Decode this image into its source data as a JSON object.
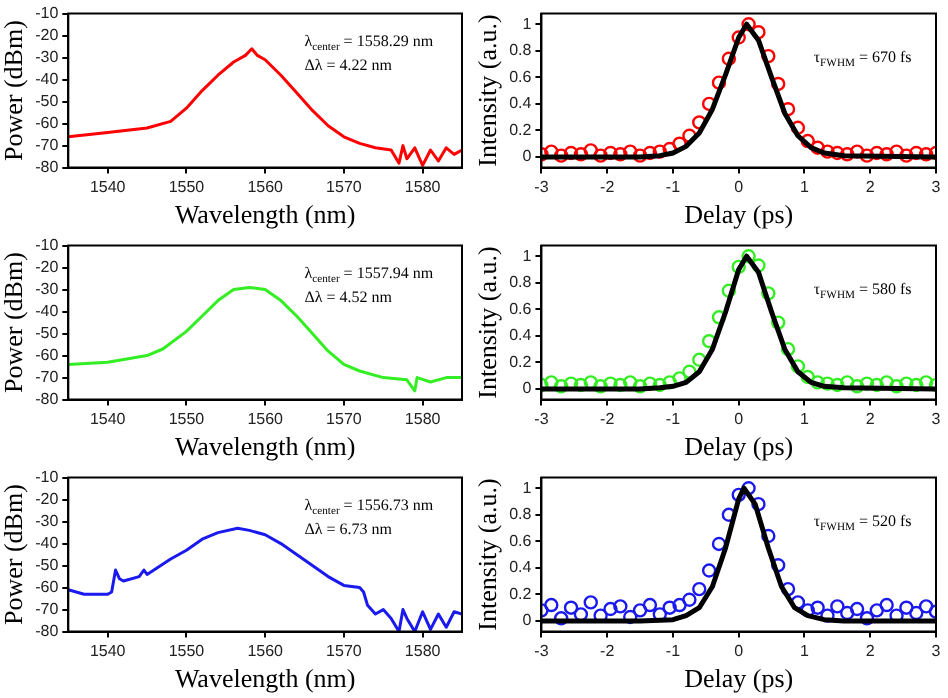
{
  "chart_data": [
    {
      "type": "line",
      "xlabel": "Wavelength (nm)",
      "ylabel": "Power (dBm)",
      "xlim": [
        1535,
        1585
      ],
      "xticks": [
        1540,
        1550,
        1560,
        1570,
        1580
      ],
      "ylim": [
        -80,
        -10
      ],
      "yticks": [
        -80,
        -70,
        -60,
        -50,
        -40,
        -30,
        -20,
        -10
      ],
      "annotations": [
        "λ$_{center}$ = 1558.29 nm",
        "Δλ = 4.22 nm"
      ],
      "marker": "none",
      "series": [
        {
          "color": "#ff0000",
          "x": [
            1535,
            1540,
            1545,
            1548,
            1550,
            1552,
            1554,
            1556,
            1557.5,
            1558.3,
            1559,
            1560,
            1562,
            1564,
            1566,
            1568,
            1570,
            1572,
            1574,
            1576,
            1577,
            1577.5,
            1578,
            1579,
            1580,
            1581,
            1582,
            1583,
            1584,
            1585
          ],
          "values": [
            -66,
            -64,
            -62,
            -59,
            -53,
            -45,
            -38,
            -32,
            -29,
            -26,
            -29,
            -31,
            -38,
            -46,
            -54,
            -61,
            -66,
            -69,
            -71,
            -72,
            -78,
            -70,
            -76,
            -71,
            -79,
            -72,
            -77,
            -71,
            -74,
            -72
          ]
        }
      ]
    },
    {
      "type": "scatter",
      "xlabel": "Delay (ps)",
      "ylabel": "Intensity (a.u.)",
      "xlim": [
        -3,
        3
      ],
      "xticks": [
        -3,
        -2,
        -1,
        0,
        1,
        2,
        3
      ],
      "ylim": [
        -0.08,
        1.08
      ],
      "yticks": [
        0,
        0.2,
        0.4,
        0.6,
        0.8,
        1
      ],
      "annotations": [
        "τ$_{FWHM}$ = 670 fs"
      ],
      "marker": "circle",
      "series": [
        {
          "type": "scatter",
          "color": "#ff0000",
          "x": [
            -3,
            -2.85,
            -2.7,
            -2.55,
            -2.4,
            -2.25,
            -2.1,
            -1.95,
            -1.8,
            -1.65,
            -1.5,
            -1.35,
            -1.2,
            -1.05,
            -0.9,
            -0.75,
            -0.6,
            -0.45,
            -0.3,
            -0.15,
            0,
            0.15,
            0.3,
            0.45,
            0.6,
            0.75,
            0.9,
            1.05,
            1.2,
            1.35,
            1.5,
            1.65,
            1.8,
            1.95,
            2.1,
            2.25,
            2.4,
            2.55,
            2.7,
            2.85,
            3
          ],
          "values": [
            0.02,
            0.04,
            0.01,
            0.03,
            0.02,
            0.05,
            0.01,
            0.03,
            0.02,
            0.04,
            0.01,
            0.03,
            0.04,
            0.06,
            0.1,
            0.16,
            0.26,
            0.4,
            0.56,
            0.74,
            0.9,
            1.0,
            0.94,
            0.76,
            0.55,
            0.36,
            0.22,
            0.12,
            0.07,
            0.04,
            0.03,
            0.02,
            0.04,
            0.01,
            0.03,
            0.02,
            0.04,
            0.01,
            0.03,
            0.02,
            0.03
          ]
        },
        {
          "type": "line",
          "marker": "none",
          "color": "#000000",
          "x": [
            -3,
            -1.5,
            -1.2,
            -1,
            -0.8,
            -0.6,
            -0.4,
            -0.2,
            0,
            0.12,
            0.3,
            0.5,
            0.7,
            0.9,
            1.1,
            1.3,
            1.6,
            3
          ],
          "values": [
            0,
            0,
            0.01,
            0.03,
            0.08,
            0.18,
            0.36,
            0.62,
            0.9,
            1,
            0.88,
            0.6,
            0.33,
            0.16,
            0.07,
            0.03,
            0.01,
            0
          ]
        }
      ]
    },
    {
      "type": "line",
      "xlabel": "Wavelength (nm)",
      "ylabel": "Power (dBm)",
      "xlim": [
        1535,
        1585
      ],
      "xticks": [
        1540,
        1550,
        1560,
        1570,
        1580
      ],
      "ylim": [
        -80,
        -10
      ],
      "yticks": [
        -80,
        -70,
        -60,
        -50,
        -40,
        -30,
        -20,
        -10
      ],
      "annotations": [
        "λ$_{center}$ = 1557.94 nm",
        "Δλ = 4.52 nm"
      ],
      "marker": "none",
      "series": [
        {
          "color": "#33ee22",
          "x": [
            1535,
            1540,
            1545,
            1547,
            1550,
            1552,
            1554,
            1556,
            1558,
            1560,
            1562,
            1564,
            1566,
            1568,
            1570,
            1572,
            1575,
            1578,
            1579,
            1579.3,
            1581,
            1583,
            1585
          ],
          "values": [
            -64,
            -63,
            -60,
            -57,
            -49,
            -42,
            -35,
            -30,
            -29,
            -30,
            -35,
            -42,
            -50,
            -58,
            -64,
            -67,
            -70,
            -71,
            -76,
            -70,
            -72,
            -70,
            -70
          ]
        }
      ]
    },
    {
      "type": "scatter",
      "xlabel": "Delay (ps)",
      "ylabel": "Intensity (a.u.)",
      "xlim": [
        -3,
        3
      ],
      "xticks": [
        -3,
        -2,
        -1,
        0,
        1,
        2,
        3
      ],
      "ylim": [
        -0.08,
        1.08
      ],
      "yticks": [
        0,
        0.2,
        0.4,
        0.6,
        0.8,
        1
      ],
      "annotations": [
        "τ$_{FWHM}$ = 580 fs"
      ],
      "marker": "circle",
      "series": [
        {
          "type": "scatter",
          "color": "#33ee22",
          "x": [
            -3,
            -2.85,
            -2.7,
            -2.55,
            -2.4,
            -2.25,
            -2.1,
            -1.95,
            -1.8,
            -1.65,
            -1.5,
            -1.35,
            -1.2,
            -1.05,
            -0.9,
            -0.75,
            -0.6,
            -0.45,
            -0.3,
            -0.15,
            0,
            0.15,
            0.3,
            0.45,
            0.6,
            0.75,
            0.9,
            1.05,
            1.2,
            1.35,
            1.5,
            1.65,
            1.8,
            1.95,
            2.1,
            2.25,
            2.4,
            2.55,
            2.7,
            2.85,
            3
          ],
          "values": [
            0.03,
            0.05,
            0.02,
            0.04,
            0.03,
            0.05,
            0.02,
            0.04,
            0.03,
            0.05,
            0.02,
            0.04,
            0.03,
            0.05,
            0.08,
            0.13,
            0.22,
            0.36,
            0.54,
            0.74,
            0.92,
            1.0,
            0.93,
            0.72,
            0.5,
            0.3,
            0.17,
            0.09,
            0.05,
            0.04,
            0.03,
            0.05,
            0.02,
            0.04,
            0.03,
            0.05,
            0.02,
            0.04,
            0.03,
            0.05,
            0.03
          ]
        },
        {
          "type": "line",
          "marker": "none",
          "color": "#000000",
          "x": [
            -3,
            -1.5,
            -1.2,
            -1,
            -0.8,
            -0.6,
            -0.4,
            -0.2,
            0,
            0.12,
            0.3,
            0.5,
            0.7,
            0.9,
            1.1,
            1.3,
            1.6,
            3
          ],
          "values": [
            0,
            0,
            0.01,
            0.02,
            0.05,
            0.13,
            0.3,
            0.58,
            0.9,
            1,
            0.88,
            0.58,
            0.3,
            0.13,
            0.05,
            0.02,
            0.01,
            0
          ]
        }
      ]
    },
    {
      "type": "line",
      "xlabel": "Wavelength (nm)",
      "ylabel": "Power (dBm)",
      "xlim": [
        1535,
        1585
      ],
      "xticks": [
        1540,
        1550,
        1560,
        1570,
        1580
      ],
      "ylim": [
        -80,
        -10
      ],
      "yticks": [
        -80,
        -70,
        -60,
        -50,
        -40,
        -30,
        -20,
        -10
      ],
      "annotations": [
        "λ$_{center}$ = 1556.73 nm",
        "Δλ = 6.73 nm"
      ],
      "marker": "none",
      "series": [
        {
          "color": "#1a1aee",
          "x": [
            1535,
            1537,
            1540,
            1540.5,
            1541,
            1541.5,
            1542,
            1544,
            1544.6,
            1545,
            1548,
            1550,
            1552,
            1554,
            1556.5,
            1558,
            1560,
            1562,
            1564,
            1566,
            1568,
            1570,
            1572,
            1572.5,
            1573,
            1574,
            1575,
            1576,
            1577,
            1577.5,
            1578,
            1579,
            1580,
            1581,
            1582,
            1583,
            1584,
            1585
          ],
          "values": [
            -61,
            -63,
            -63,
            -62,
            -52,
            -56,
            -57,
            -55,
            -52,
            -54,
            -47,
            -43,
            -38,
            -35,
            -33,
            -34,
            -36,
            -40,
            -45,
            -50,
            -55,
            -59,
            -60,
            -62,
            -68,
            -72,
            -70,
            -74,
            -80,
            -70,
            -74,
            -80,
            -71,
            -79,
            -72,
            -78,
            -71,
            -72
          ]
        }
      ]
    },
    {
      "type": "scatter",
      "xlabel": "Delay (ps)",
      "ylabel": "Intensity (a.u.)",
      "xlim": [
        -3,
        3
      ],
      "xticks": [
        -3,
        -2,
        -1,
        0,
        1,
        2,
        3
      ],
      "ylim": [
        -0.08,
        1.08
      ],
      "yticks": [
        0,
        0.2,
        0.4,
        0.6,
        0.8,
        1
      ],
      "annotations": [
        "τ$_{FWHM}$ = 520 fs"
      ],
      "marker": "circle",
      "series": [
        {
          "type": "scatter",
          "color": "#1a1aee",
          "x": [
            -3,
            -2.85,
            -2.7,
            -2.55,
            -2.4,
            -2.25,
            -2.1,
            -1.95,
            -1.8,
            -1.65,
            -1.5,
            -1.35,
            -1.2,
            -1.05,
            -0.9,
            -0.75,
            -0.6,
            -0.45,
            -0.3,
            -0.15,
            0,
            0.15,
            0.3,
            0.45,
            0.6,
            0.75,
            0.9,
            1.05,
            1.2,
            1.35,
            1.5,
            1.65,
            1.8,
            1.95,
            2.1,
            2.25,
            2.4,
            2.55,
            2.7,
            2.85,
            3
          ],
          "values": [
            0.08,
            0.12,
            0.02,
            0.1,
            0.05,
            0.14,
            0.04,
            0.09,
            0.11,
            0.03,
            0.08,
            0.12,
            0.05,
            0.1,
            0.12,
            0.16,
            0.24,
            0.38,
            0.58,
            0.8,
            0.95,
            1.0,
            0.88,
            0.64,
            0.42,
            0.24,
            0.14,
            0.08,
            0.1,
            0.04,
            0.11,
            0.06,
            0.09,
            0.02,
            0.08,
            0.12,
            0.04,
            0.1,
            0.06,
            0.11,
            0.07
          ]
        },
        {
          "type": "line",
          "marker": "none",
          "color": "#000000",
          "x": [
            -3,
            -1.5,
            -1,
            -0.8,
            -0.6,
            -0.4,
            -0.2,
            0,
            0.08,
            0.25,
            0.45,
            0.65,
            0.85,
            1.05,
            1.3,
            1.6,
            3
          ],
          "values": [
            0,
            0,
            0.01,
            0.04,
            0.1,
            0.26,
            0.55,
            0.92,
            1,
            0.88,
            0.55,
            0.26,
            0.1,
            0.04,
            0.01,
            0,
            0
          ]
        }
      ]
    }
  ]
}
